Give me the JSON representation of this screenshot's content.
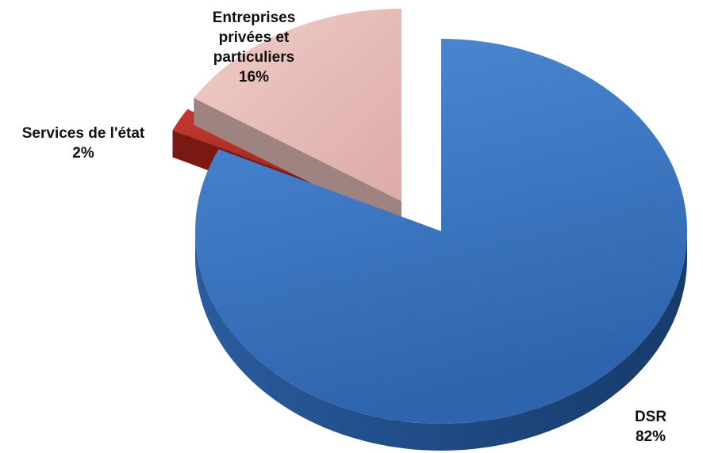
{
  "chart_data": {
    "type": "pie",
    "style": "3d-exploded",
    "slices": [
      {
        "key": "dsr",
        "label": "DSR",
        "value": 82,
        "value_label": "82%",
        "color": "#3d78c0"
      },
      {
        "key": "etat",
        "label": "Services de l'état",
        "value": 2,
        "value_label": "2%",
        "color": "#a3231c"
      },
      {
        "key": "prive",
        "label_lines": [
          "Entreprises",
          "privées et",
          "particuliers"
        ],
        "value": 16,
        "value_label": "16%",
        "color": "#e6b9b5"
      }
    ]
  }
}
